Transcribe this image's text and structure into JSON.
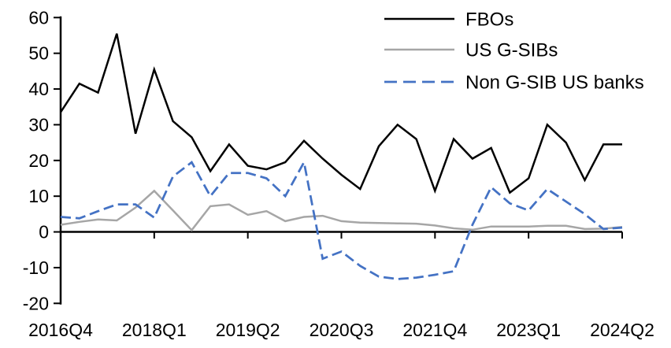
{
  "chart_data": {
    "type": "line",
    "title": "",
    "xlabel": "",
    "ylabel": "",
    "ylim": [
      -20,
      60
    ],
    "grid": false,
    "legend_position": "top-right",
    "y_tick_labels": [
      "60",
      "50",
      "40",
      "30",
      "20",
      "10",
      "0",
      "-10",
      "-20"
    ],
    "y_tick_values": [
      60,
      50,
      40,
      30,
      20,
      10,
      0,
      -10,
      -20
    ],
    "x_tick_labels": [
      "2016Q4",
      "2018Q1",
      "2019Q2",
      "2020Q3",
      "2021Q4",
      "2023Q1",
      "2024Q2"
    ],
    "x_tick_indices": [
      0,
      5,
      10,
      15,
      20,
      25,
      30
    ],
    "categories": [
      "2016Q4",
      "2017Q1",
      "2017Q2",
      "2017Q3",
      "2017Q4",
      "2018Q1",
      "2018Q2",
      "2018Q3",
      "2018Q4",
      "2019Q1",
      "2019Q2",
      "2019Q3",
      "2019Q4",
      "2020Q1",
      "2020Q2",
      "2020Q3",
      "2020Q4",
      "2021Q1",
      "2021Q2",
      "2021Q3",
      "2021Q4",
      "2022Q1",
      "2022Q2",
      "2022Q3",
      "2022Q4",
      "2023Q1",
      "2023Q2",
      "2023Q3",
      "2023Q4",
      "2024Q1",
      "2024Q2"
    ],
    "series": [
      {
        "name": "FBOs",
        "color": "#000000",
        "style": "solid",
        "values": [
          33.5,
          41.5,
          39,
          55.5,
          27.5,
          45.5,
          31,
          26.5,
          17,
          24.5,
          18.5,
          17.5,
          19.5,
          25.5,
          20.5,
          16,
          12,
          24,
          30,
          26,
          11.5,
          26,
          20.5,
          23.5,
          11,
          15,
          30,
          25,
          14.5,
          24.5,
          24.5
        ]
      },
      {
        "name": "US G-SIBs",
        "color": "#a6a6a6",
        "style": "solid",
        "values": [
          2,
          2.8,
          3.5,
          3.2,
          6.8,
          11.5,
          6,
          0.5,
          7.2,
          7.7,
          4.8,
          5.8,
          3,
          4.2,
          4.5,
          3,
          2.6,
          2.5,
          2.4,
          2.3,
          1.8,
          1,
          0.6,
          1.5,
          1.5,
          1.5,
          1.7,
          1.7,
          0.8,
          0.9,
          1.4
        ]
      },
      {
        "name": "Non G-SIB US banks",
        "color": "#4472c4",
        "style": "dashed",
        "values": [
          4.2,
          3.8,
          5.8,
          7.7,
          7.7,
          4,
          15.5,
          19.5,
          10,
          16.5,
          16.5,
          15,
          10,
          19.5,
          -7.5,
          -5.5,
          -9.5,
          -12.5,
          -13.2,
          -12.8,
          -12,
          -11,
          2,
          12.5,
          8,
          6,
          12,
          8.5,
          5,
          0.8,
          1.2
        ]
      }
    ]
  }
}
